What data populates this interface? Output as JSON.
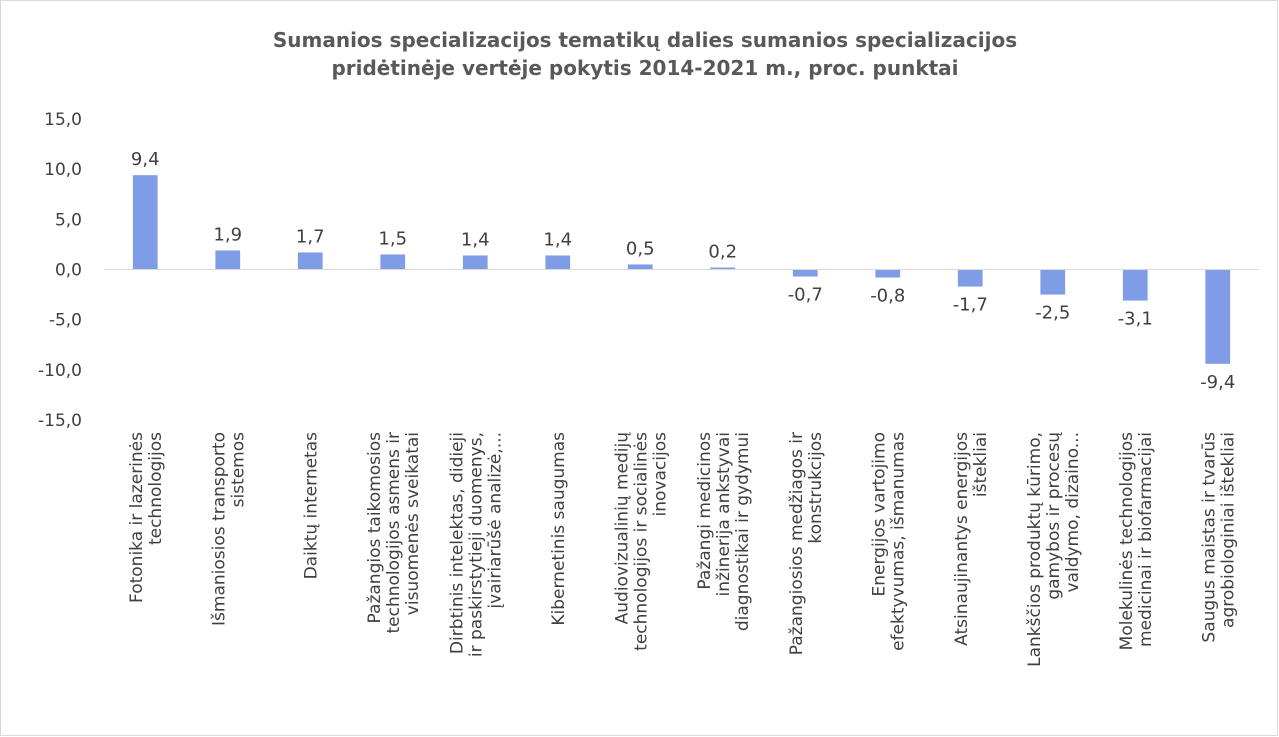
{
  "chart_data": {
    "type": "bar",
    "title": "Sumanios specializacijos tematikų dalies sumanios specializacijos\npridėtinėje vertėje pokytis 2014-2021 m., proc. punktai",
    "categories": [
      "Fotonika ir lazerinės\ntechnologijos",
      "Išmaniosios transporto\nsistemos",
      "Daiktų internetas",
      "Pažangios taikomosios\ntechnologijos asmens ir\nvisuomenės sveikatai",
      "Dirbtinis intelektas, didieji\nir paskirstytieji duomenys,\nįvairiarūšė analizė,...",
      "Kibernetinis saugumas",
      "Audiovizualinių medijų\ntechnologijos ir socialinės\ninovacijos",
      "Pažangi medicinos\ninžinerija ankstyvai\ndiagnostikai ir gydymui",
      "Pažangiosios medžiagos ir\nkonstrukcijos",
      "Energijos vartojimo\nefektyvumas, išmanumas",
      "Atsinaujinantys energijos\ništekliai",
      "Lankščios produktų kūrimo,\ngamybos ir procesų\nvaldymo, dizaino...",
      "Molekulinės technologijos\nmedicinai ir biofarmacijai",
      "Saugus maistas ir tvarūs\nagrobiologiniai ištekliai"
    ],
    "values": [
      9.4,
      1.9,
      1.7,
      1.5,
      1.4,
      1.4,
      0.5,
      0.2,
      -0.7,
      -0.8,
      -1.7,
      -2.5,
      -3.1,
      -9.4
    ],
    "value_labels": [
      "9,4",
      "1,9",
      "1,7",
      "1,5",
      "1,4",
      "1,4",
      "0,5",
      "0,2",
      "-0,7",
      "-0,8",
      "-1,7",
      "-2,5",
      "-3,1",
      "-9,4"
    ],
    "color": "#7f9de6",
    "ylim": [
      -15,
      15
    ],
    "yticks": [
      {
        "value": -15,
        "label": "-15,0"
      },
      {
        "value": -10,
        "label": "-10,0"
      },
      {
        "value": -5,
        "label": "-5,0"
      },
      {
        "value": 0,
        "label": "0,0"
      },
      {
        "value": 5,
        "label": "5,0"
      },
      {
        "value": 10,
        "label": "10,0"
      },
      {
        "value": 15,
        "label": "15,0"
      }
    ],
    "grid": false
  }
}
